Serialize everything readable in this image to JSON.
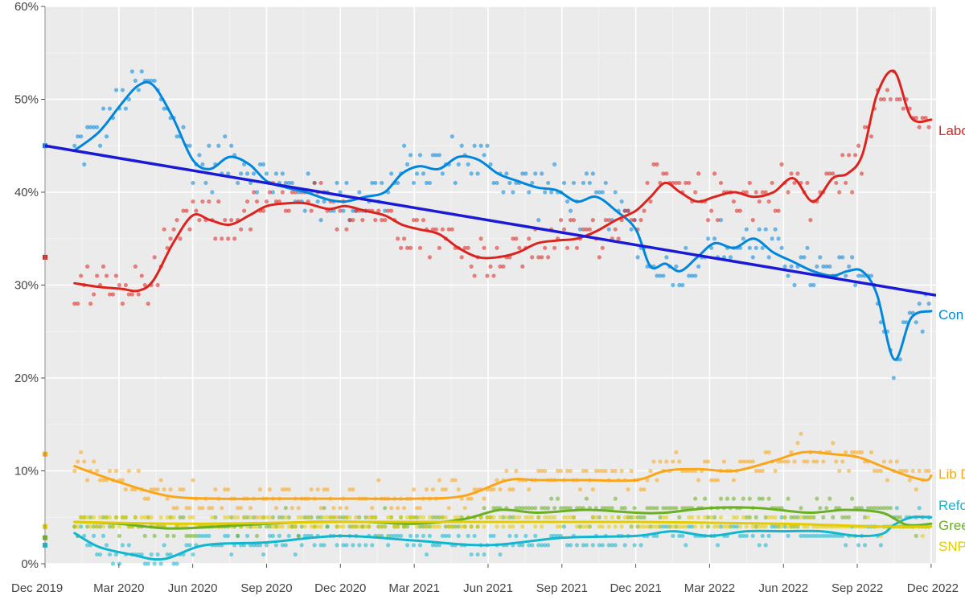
{
  "chart_data": {
    "type": "scatter",
    "title": "",
    "xlabel": "",
    "ylabel": "",
    "x_ticks": [
      "Dec 2019",
      "Mar 2020",
      "Jun 2020",
      "Sep 2020",
      "Dec 2020",
      "Mar 2021",
      "Jun 2021",
      "Sep 2021",
      "Dec 2021",
      "Mar 2022",
      "Jun 2022",
      "Sep 2022",
      "Dec 2022"
    ],
    "y_ticks": [
      "0%",
      "10%",
      "20%",
      "30%",
      "40%",
      "50%",
      "60%"
    ],
    "ylim": [
      0,
      60
    ],
    "xlim_months": [
      0,
      36.2
    ],
    "grid": true,
    "election_result": [
      {
        "party": "Conservative",
        "value": 45
      },
      {
        "party": "Labour",
        "value": 33
      },
      {
        "party": "Lib Dem",
        "value": 11.8
      },
      {
        "party": "Green",
        "value": 2.8
      },
      {
        "party": "Reform",
        "value": 2
      },
      {
        "party": "SNP",
        "value": 4
      }
    ],
    "series": [
      {
        "name": "Conservative",
        "label": "Con",
        "color": "#0087DC",
        "x": [
          1.2,
          2.2,
          3.1,
          3.8,
          4.4,
          5.2,
          6,
          6.7,
          7.5,
          8.3,
          9,
          9.8,
          10.6,
          11.5,
          12.2,
          13,
          13.8,
          14.5,
          15.2,
          16,
          16.8,
          17.6,
          18.4,
          19.2,
          20,
          20.8,
          21.6,
          22.4,
          23.2,
          24,
          24.6,
          25.2,
          25.8,
          26.5,
          27.2,
          28,
          28.8,
          29.6,
          30.4,
          31.2,
          32,
          32.6,
          33.2,
          33.8,
          34.5,
          35.2,
          36
        ],
        "values": [
          44.5,
          46.5,
          49.5,
          51.5,
          51.5,
          48,
          43.5,
          42.5,
          43.8,
          43,
          41.2,
          40.5,
          40,
          39.2,
          39,
          39.5,
          40,
          42,
          42.8,
          42.5,
          43.8,
          43.5,
          42,
          41.2,
          40.5,
          40.2,
          39,
          39.5,
          38,
          36,
          32,
          32.3,
          31.5,
          33,
          34.5,
          34,
          35,
          33.5,
          32.5,
          31.5,
          31,
          31.5,
          31.5,
          29,
          22,
          26.5,
          27.2
        ]
      },
      {
        "name": "Labour",
        "label": "Labour",
        "color": "#DC241F",
        "x": [
          1.2,
          2.2,
          3.1,
          3.8,
          4.4,
          5.2,
          6,
          6.7,
          7.5,
          8.3,
          9,
          9.8,
          10.6,
          11.5,
          12.2,
          13,
          13.8,
          14.5,
          15.2,
          16,
          16.8,
          17.6,
          18.4,
          19.2,
          20,
          20.8,
          21.6,
          22.4,
          23.2,
          24,
          24.6,
          25.2,
          25.8,
          26.5,
          27.2,
          28,
          28.8,
          29.6,
          30.4,
          31.2,
          32,
          32.6,
          33.2,
          33.8,
          34.5,
          35.2,
          36
        ],
        "values": [
          30.2,
          29.8,
          29.6,
          29.4,
          30.5,
          34.5,
          37.5,
          37,
          36.5,
          37.5,
          38.5,
          38.8,
          38.8,
          38.2,
          38.5,
          38,
          37.5,
          36.5,
          36,
          35.5,
          34,
          33,
          33,
          33.5,
          34.5,
          34.8,
          35,
          35.8,
          37,
          38,
          39.5,
          41,
          40,
          39,
          39.5,
          40,
          39.5,
          40,
          41.5,
          39,
          41.5,
          42,
          44,
          50.5,
          53,
          48,
          47.8
        ]
      },
      {
        "name": "Lib Dem",
        "label": "Lib Dem",
        "color": "#FAA61A",
        "x": [
          1.2,
          3,
          5,
          7,
          9,
          11,
          13,
          15,
          17,
          18.8,
          20,
          22,
          24,
          25.2,
          26.5,
          28,
          29.5,
          30.8,
          32,
          33,
          34,
          35,
          35.8,
          36
        ],
        "values": [
          10.5,
          8.8,
          7.3,
          7.0,
          7.0,
          7.0,
          7.0,
          7.0,
          7.3,
          9.0,
          9.0,
          9.0,
          9.0,
          10.0,
          10.2,
          10.0,
          11.0,
          12.0,
          11.8,
          11.5,
          10.5,
          9.5,
          9.0,
          9.5
        ]
      },
      {
        "name": "Reform",
        "label": "Reform",
        "color": "#12B6CF",
        "x": [
          1.2,
          2.2,
          3.5,
          4.8,
          6.5,
          9,
          12,
          15,
          18,
          21,
          24,
          25.5,
          27,
          28.5,
          30,
          31.5,
          33,
          34,
          34.5,
          35.2,
          36
        ],
        "values": [
          3.3,
          1.8,
          1.0,
          0.5,
          2.0,
          2.3,
          3.0,
          2.5,
          2.0,
          2.8,
          3.0,
          3.5,
          3.0,
          3.5,
          3.5,
          3.5,
          3.0,
          3.2,
          4.2,
          5.0,
          5.0
        ]
      },
      {
        "name": "Green",
        "label": "Green",
        "color": "#6AB023",
        "x": [
          1.2,
          3,
          5,
          7,
          9,
          11,
          13,
          15,
          17,
          18.5,
          20,
          22,
          24,
          25.2,
          27,
          29,
          31,
          32.5,
          34,
          35,
          36
        ],
        "values": [
          4.5,
          4.3,
          3.8,
          4.0,
          4.3,
          4.5,
          4.5,
          4.3,
          4.8,
          5.8,
          5.5,
          5.8,
          5.5,
          5.5,
          6.0,
          6.0,
          5.5,
          5.8,
          5.5,
          4.2,
          4.3
        ]
      },
      {
        "name": "SNP",
        "label": "SNP",
        "color": "#E3CC00",
        "x": [
          1.2,
          6,
          12,
          18,
          24,
          30,
          34,
          36
        ],
        "values": [
          4.5,
          4.3,
          4.5,
          4.5,
          4.5,
          4.3,
          4.0,
          4.0
        ]
      }
    ],
    "trend_line": {
      "color": "#1A1AD6",
      "x": [
        0,
        36.2
      ],
      "values": [
        45,
        28.9
      ]
    }
  }
}
